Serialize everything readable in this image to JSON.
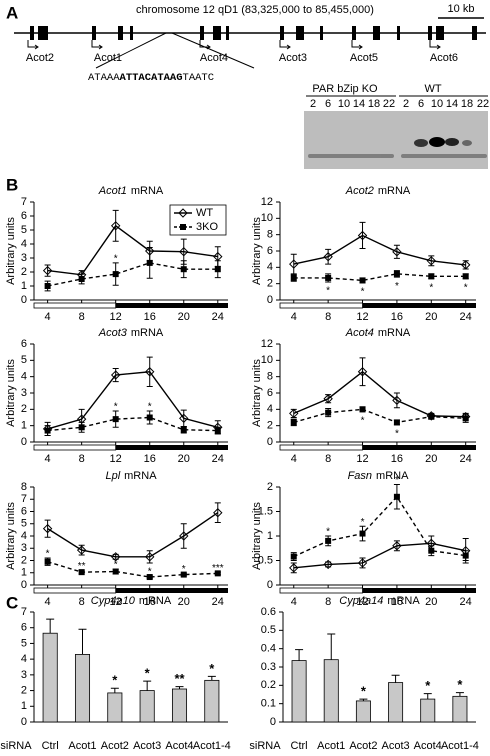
{
  "panel_labels": [
    "A",
    "B",
    "C"
  ],
  "panel_a": {
    "chromosome": "chromosome 12 qD1 (83,325,000 to 85,455,000)",
    "scale": "10 kb",
    "genes": [
      "Acot2",
      "Acot1",
      "Acot4",
      "Acot3",
      "Acot5",
      "Acot6"
    ],
    "sequence": [
      "ATAAA",
      "ATTACATAAG",
      "TAATC"
    ],
    "gel": {
      "groups": [
        "PAR bZip KO",
        "WT"
      ],
      "lanes": [
        [
          2,
          6,
          10,
          14,
          18,
          22
        ],
        [
          2,
          6,
          10,
          14,
          18,
          22
        ]
      ]
    }
  },
  "chart_data": [
    {
      "type": "line",
      "gene": "Acot1",
      "title": "mRNA",
      "ylabel": "Arbitrary units",
      "x": [
        4,
        8,
        12,
        16,
        20,
        24
      ],
      "xlim": [
        2.4,
        25.2
      ],
      "xticks": [
        4,
        8,
        12,
        16,
        20,
        24
      ],
      "ylim": [
        0,
        7
      ],
      "yticks": [
        0,
        1,
        2,
        3,
        4,
        5,
        6,
        7
      ],
      "legend": "upper right",
      "series": [
        {
          "name": "WT",
          "color": "#000000",
          "marker": "diamond",
          "dashed": false,
          "values": [
            2.1,
            1.8,
            5.3,
            3.5,
            3.45,
            3.1
          ],
          "errors": [
            0.4,
            0.3,
            1.1,
            0.7,
            0.9,
            0.7
          ]
        },
        {
          "name": "3KO",
          "color": "#000000",
          "marker": "square",
          "dashed": true,
          "values": [
            1.0,
            1.5,
            1.85,
            2.65,
            2.2,
            2.2
          ],
          "errors": [
            0.35,
            0.35,
            0.8,
            1.1,
            0.6,
            0.6
          ],
          "significance": [
            null,
            null,
            "*",
            null,
            null,
            null
          ]
        }
      ]
    },
    {
      "type": "line",
      "gene": "Acot2",
      "title": "mRNA",
      "ylabel": "Arbitrary units",
      "x": [
        4,
        8,
        12,
        16,
        20,
        24
      ],
      "xlim": [
        2.4,
        25.2
      ],
      "xticks": [
        4,
        8,
        12,
        16,
        20,
        24
      ],
      "ylim": [
        0,
        12
      ],
      "yticks": [
        0,
        2,
        4,
        6,
        8,
        10,
        12
      ],
      "series": [
        {
          "color": "#000000",
          "marker": "diamond",
          "dashed": false,
          "values": [
            4.4,
            5.3,
            7.9,
            5.9,
            4.8,
            4.3
          ],
          "errors": [
            1.2,
            0.9,
            1.6,
            0.8,
            0.6,
            0.5
          ]
        },
        {
          "color": "#000000",
          "marker": "square",
          "dashed": true,
          "values": [
            2.7,
            2.7,
            2.4,
            3.2,
            2.9,
            2.9
          ],
          "errors": [
            0.4,
            0.5,
            0.3,
            0.4,
            0.3,
            0.3
          ],
          "significance": [
            null,
            "*",
            "*",
            "*",
            "*",
            "*"
          ]
        }
      ]
    },
    {
      "type": "line",
      "gene": "Acot3",
      "title": "mRNA",
      "ylabel": "Arbitrary units",
      "x": [
        4,
        8,
        12,
        16,
        20,
        24
      ],
      "xlim": [
        2.4,
        25.2
      ],
      "xticks": [
        4,
        8,
        12,
        16,
        20,
        24
      ],
      "ylim": [
        0,
        6
      ],
      "yticks": [
        0,
        1,
        2,
        3,
        4,
        5,
        6
      ],
      "series": [
        {
          "color": "#000000",
          "marker": "diamond",
          "dashed": false,
          "values": [
            0.8,
            1.4,
            4.1,
            4.3,
            1.45,
            0.9
          ],
          "errors": [
            0.4,
            0.6,
            0.4,
            0.9,
            0.5,
            0.4
          ]
        },
        {
          "color": "#000000",
          "marker": "square",
          "dashed": true,
          "values": [
            0.7,
            0.9,
            1.4,
            1.5,
            0.75,
            0.7
          ],
          "errors": [
            0.3,
            0.3,
            0.5,
            0.4,
            0.2,
            0.2
          ],
          "significance": [
            null,
            null,
            "*",
            "*",
            null,
            null
          ]
        }
      ]
    },
    {
      "type": "line",
      "gene": "Acot4",
      "title": "mRNA",
      "ylabel": "Arbitrary units",
      "x": [
        4,
        8,
        12,
        16,
        20,
        24
      ],
      "xlim": [
        2.4,
        25.2
      ],
      "xticks": [
        4,
        8,
        12,
        16,
        20,
        24
      ],
      "ylim": [
        0,
        12
      ],
      "yticks": [
        0,
        2,
        4,
        6,
        8,
        10,
        12
      ],
      "series": [
        {
          "color": "#000000",
          "marker": "diamond",
          "dashed": false,
          "values": [
            3.5,
            5.3,
            8.6,
            5.1,
            3.2,
            3.1
          ],
          "errors": [
            0.5,
            0.5,
            1.7,
            0.9,
            0.3,
            0.4
          ]
        },
        {
          "color": "#000000",
          "marker": "square",
          "dashed": true,
          "values": [
            2.4,
            3.6,
            4.0,
            2.4,
            3.1,
            2.9
          ],
          "errors": [
            0.4,
            0.5,
            0.3,
            0.3,
            0.3,
            0.5
          ],
          "significance": [
            null,
            null,
            "*",
            "*",
            null,
            null
          ]
        }
      ]
    },
    {
      "type": "line",
      "gene": "Lpl",
      "title": "mRNA",
      "ylabel": "Arbitrary units",
      "x": [
        4,
        8,
        12,
        16,
        20,
        24
      ],
      "xlim": [
        2.4,
        25.2
      ],
      "xticks": [
        4,
        8,
        12,
        16,
        20,
        24
      ],
      "ylim": [
        0,
        8
      ],
      "yticks": [
        0,
        1,
        2,
        3,
        4,
        5,
        6,
        7,
        8
      ],
      "series": [
        {
          "color": "#000000",
          "marker": "diamond",
          "dashed": false,
          "values": [
            4.6,
            2.85,
            2.3,
            2.3,
            4.0,
            5.9
          ],
          "errors": [
            0.7,
            0.4,
            0.2,
            0.5,
            1.0,
            0.8
          ]
        },
        {
          "color": "#000000",
          "marker": "square",
          "dashed": true,
          "values": [
            1.9,
            1.05,
            1.1,
            0.65,
            0.85,
            0.95
          ],
          "errors": [
            0.3,
            0.15,
            0.2,
            0.1,
            0.1,
            0.1
          ],
          "significance": [
            "*",
            "**",
            "*",
            "*",
            "*",
            "***"
          ]
        }
      ]
    },
    {
      "type": "line",
      "gene": "Fasn",
      "title": "mRNA",
      "ylabel": "Arbitrary units",
      "x": [
        4,
        8,
        12,
        16,
        20,
        24
      ],
      "xlim": [
        2.4,
        25.2
      ],
      "xticks": [
        4,
        8,
        12,
        16,
        20,
        24
      ],
      "ylim": [
        0,
        2
      ],
      "yticks": [
        0,
        0.5,
        1,
        1.5,
        2
      ],
      "series": [
        {
          "color": "#000000",
          "marker": "diamond",
          "dashed": false,
          "values": [
            0.35,
            0.42,
            0.45,
            0.8,
            0.85,
            0.7
          ],
          "errors": [
            0.1,
            0.05,
            0.1,
            0.1,
            0.15,
            0.25
          ]
        },
        {
          "color": "#000000",
          "marker": "square",
          "dashed": true,
          "values": [
            0.58,
            0.9,
            1.05,
            1.8,
            0.7,
            0.6
          ],
          "errors": [
            0.08,
            0.1,
            0.15,
            0.25,
            0.1,
            0.1
          ],
          "significance": [
            null,
            "*",
            "*",
            "*",
            null,
            null
          ]
        }
      ]
    },
    {
      "type": "bar",
      "gene": "Cyp4a10",
      "title": "mRNA",
      "xlabel": "siRNA",
      "categories": [
        "Ctrl",
        "Acot1",
        "Acot2",
        "Acot3",
        "Acot4",
        "Acot1-4"
      ],
      "values": [
        5.65,
        4.3,
        1.85,
        2.0,
        2.1,
        2.65
      ],
      "errors": [
        0.9,
        1.6,
        0.3,
        0.6,
        0.15,
        0.25
      ],
      "significance": [
        null,
        null,
        "*",
        "*",
        "**",
        "*"
      ],
      "color": "#c8c8c8",
      "ylim": [
        0,
        7
      ],
      "yticks": [
        0,
        1,
        2,
        3,
        4,
        5,
        6,
        7
      ]
    },
    {
      "type": "bar",
      "gene": "Cyp4a14",
      "title": "mRNA",
      "xlabel": "siRNA",
      "categories": [
        "Ctrl",
        "Acot1",
        "Acot2",
        "Acot3",
        "Acot4",
        "Acot1-4"
      ],
      "values": [
        0.335,
        0.34,
        0.115,
        0.215,
        0.125,
        0.14
      ],
      "errors": [
        0.06,
        0.14,
        0.01,
        0.04,
        0.03,
        0.02
      ],
      "significance": [
        null,
        null,
        "*",
        null,
        "*",
        "*"
      ],
      "color": "#c8c8c8",
      "ylim": [
        0,
        0.6
      ],
      "yticks": [
        0,
        0.1,
        0.2,
        0.3,
        0.4,
        0.5,
        0.6
      ]
    }
  ]
}
